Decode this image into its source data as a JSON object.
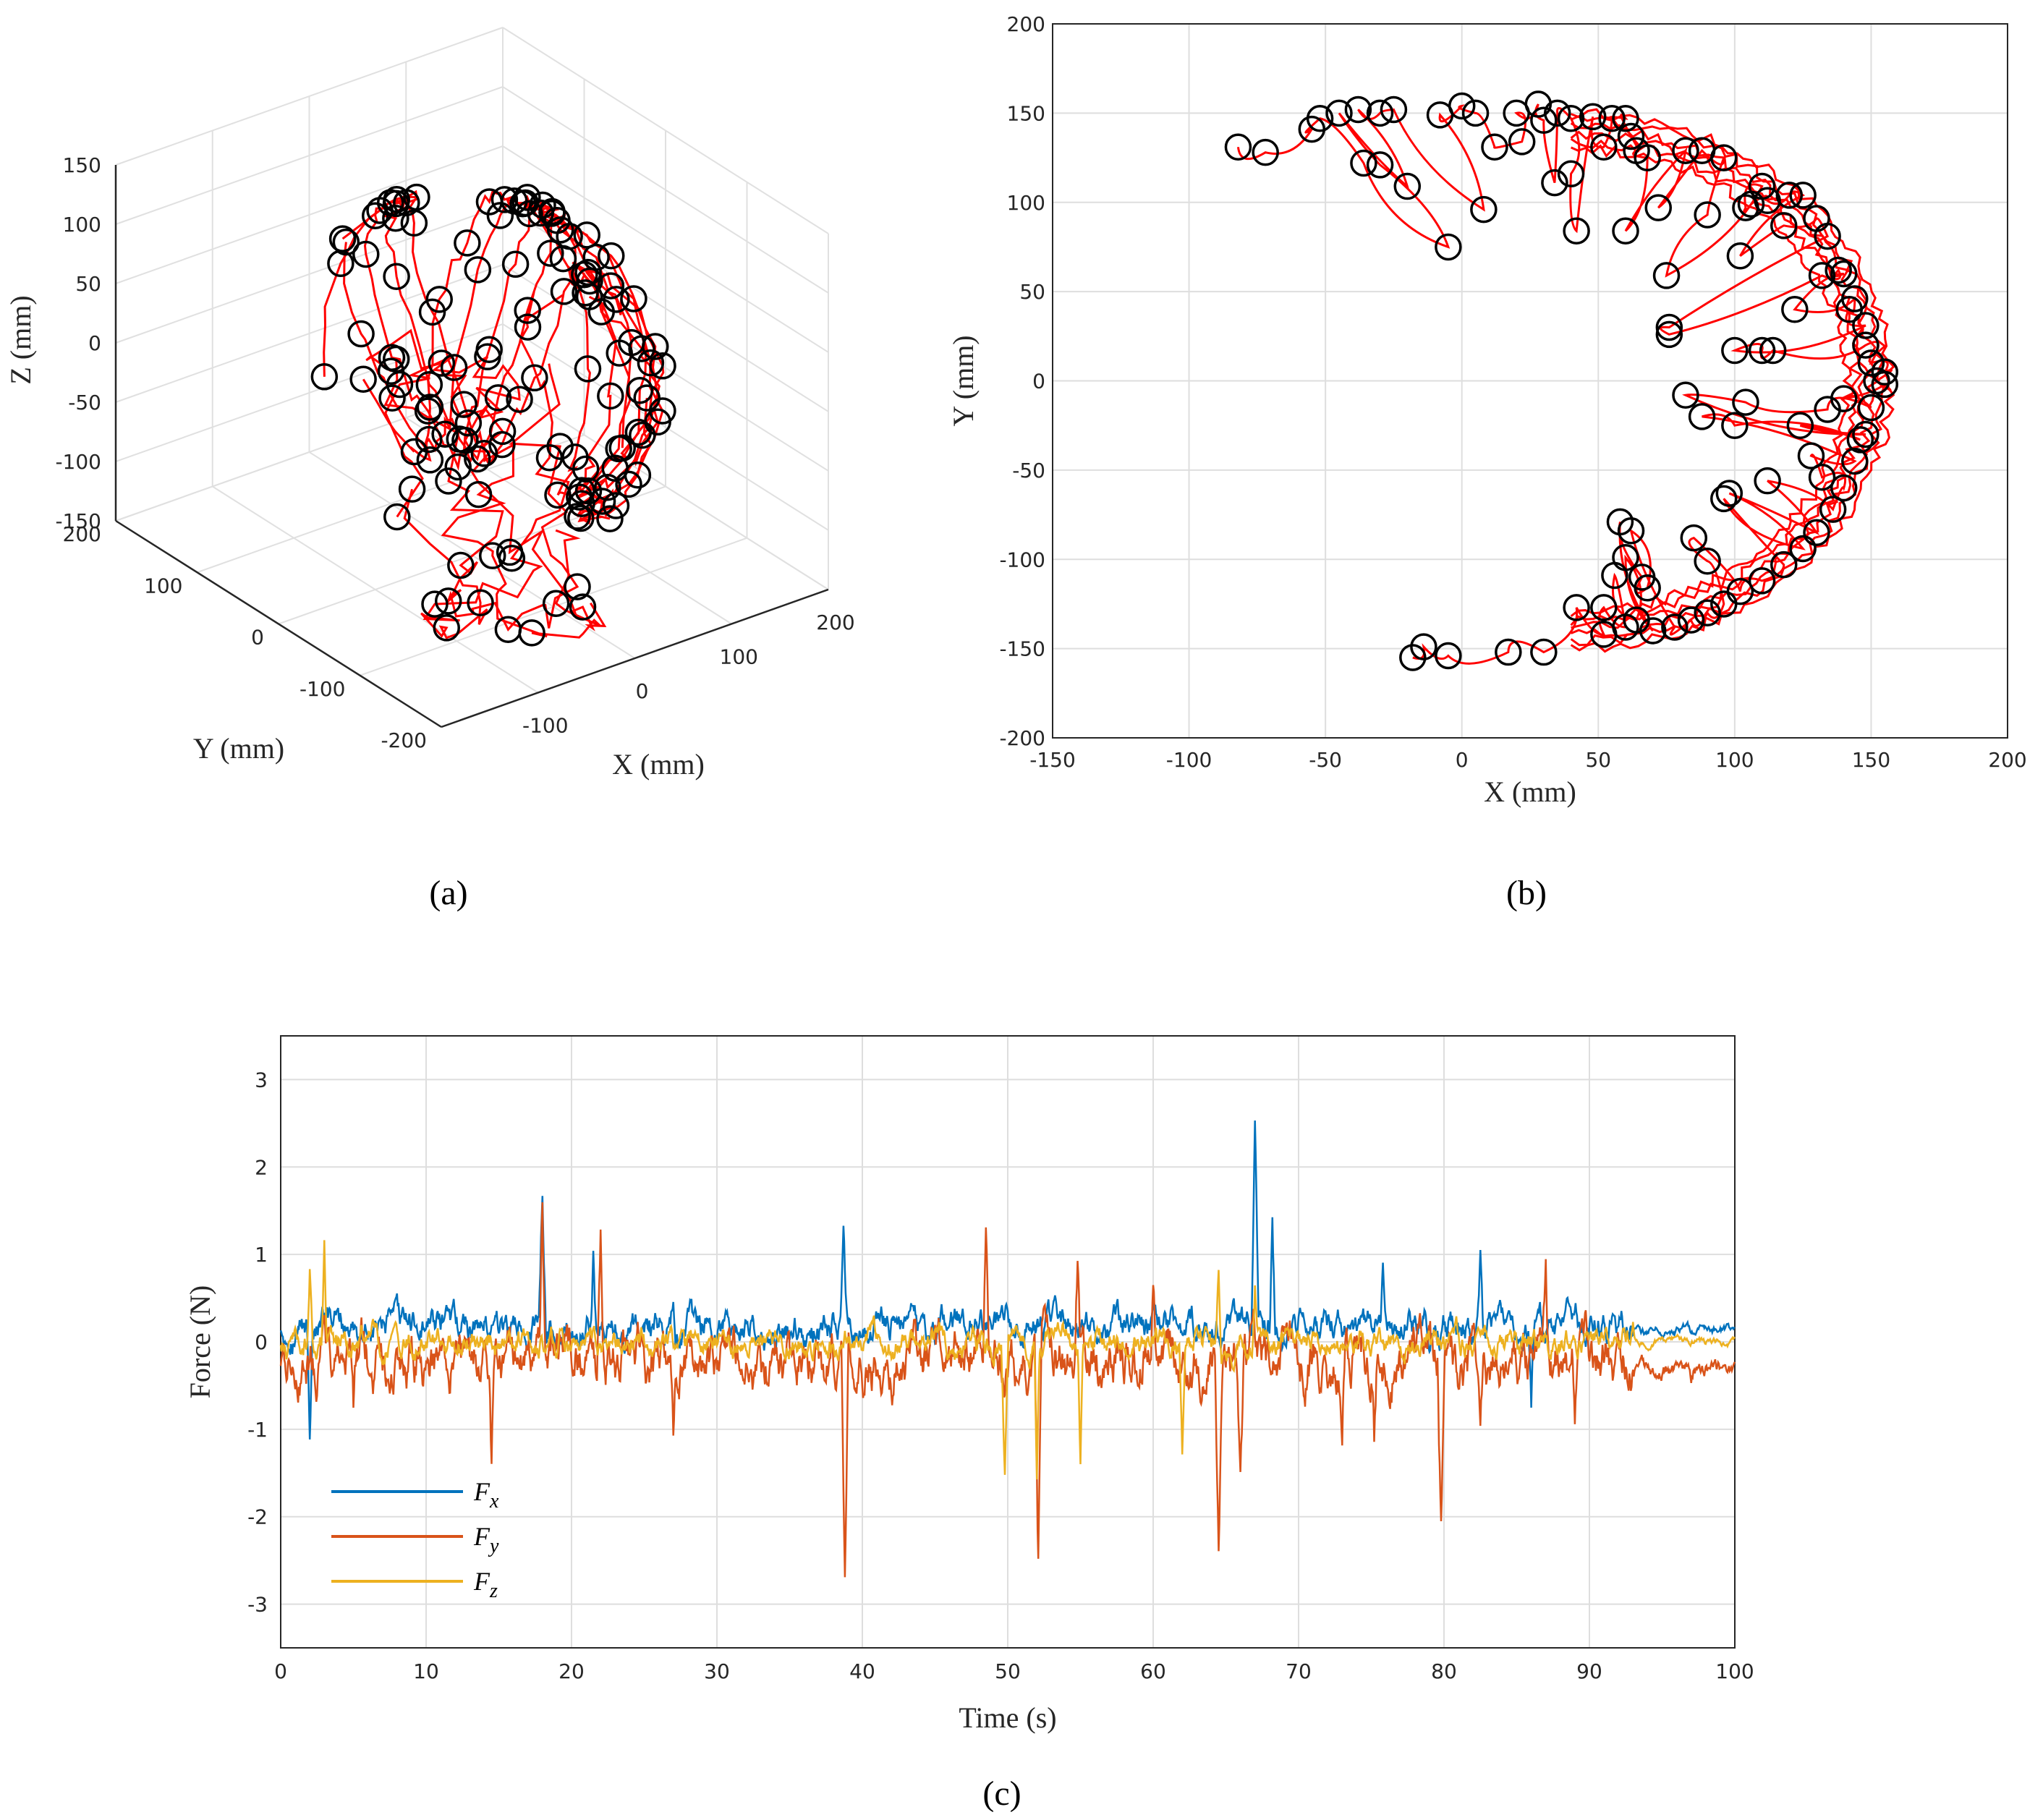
{
  "chart_data": [
    {
      "id": "a",
      "type": "line3d",
      "caption": "(a)",
      "xlabel": "X (mm)",
      "ylabel": "Y (mm)",
      "zlabel": "Z (mm)",
      "xlim": [
        -200,
        200
      ],
      "ylim": [
        -200,
        200
      ],
      "zlim": [
        -150,
        150
      ],
      "xticks": [
        "-100",
        "0",
        "100",
        "200"
      ],
      "yticks": [
        "200",
        "100",
        "0",
        "-100",
        "-200"
      ],
      "zticks": [
        "150",
        "100",
        "50",
        "0",
        "-50",
        "-100",
        "-150"
      ],
      "grid": true,
      "line_color": "#ff0000",
      "marker_color": "#000000",
      "series": [
        {
          "kind": "trajectory",
          "x": [
            150,
            140,
            120,
            100,
            80,
            60,
            40,
            20,
            0,
            -20,
            -40,
            -60,
            -80,
            -85,
            -80,
            -60,
            -40,
            -20,
            0,
            20,
            40,
            60,
            80,
            100,
            120,
            140,
            150,
            150,
            140,
            120,
            100,
            80,
            60,
            40,
            20,
            0,
            -20,
            -40,
            -60,
            -80,
            -85,
            -80,
            -60,
            -40,
            -20,
            0,
            20,
            40,
            60,
            80,
            100,
            120,
            140,
            150
          ],
          "y": [
            0,
            40,
            80,
            110,
            130,
            145,
            150,
            150,
            148,
            145,
            140,
            135,
            130,
            128,
            110,
            90,
            70,
            50,
            30,
            10,
            -10,
            -30,
            -60,
            -90,
            -120,
            -140,
            -100,
            -50,
            -80,
            -110,
            -130,
            -145,
            -150,
            -152,
            -150,
            -145,
            -130,
            -110,
            -80,
            -40,
            0,
            40,
            80,
            110,
            130,
            145,
            150,
            148,
            140,
            120,
            90,
            50,
            20,
            0
          ],
          "z": [
            0,
            30,
            60,
            80,
            95,
            100,
            100,
            98,
            95,
            90,
            80,
            70,
            50,
            20,
            -10,
            -40,
            -70,
            -90,
            -100,
            -95,
            -80,
            -60,
            -40,
            -20,
            0,
            20,
            40,
            60,
            70,
            60,
            40,
            20,
            0,
            -20,
            -40,
            -60,
            -80,
            -100,
            -120,
            -140,
            -120,
            -90,
            -60,
            -30,
            0,
            30,
            60,
            80,
            90,
            80,
            60,
            40,
            20,
            0
          ]
        }
      ]
    },
    {
      "id": "b",
      "type": "line",
      "caption": "(b)",
      "xlabel": "X (mm)",
      "ylabel": "Y (mm)",
      "xlim": [
        -150,
        200
      ],
      "ylim": [
        -200,
        200
      ],
      "xticks": [
        -150,
        -100,
        -50,
        0,
        50,
        100,
        150,
        200
      ],
      "yticks": [
        -200,
        -150,
        -100,
        -50,
        0,
        50,
        100,
        150,
        200
      ],
      "grid": true,
      "line_color": "#ff0000",
      "marker_color": "#000000",
      "markers": [
        [
          -82,
          131
        ],
        [
          -72,
          128
        ],
        [
          -55,
          141
        ],
        [
          -52,
          147
        ],
        [
          -45,
          150
        ],
        [
          -38,
          152
        ],
        [
          -30,
          150
        ],
        [
          -25,
          152
        ],
        [
          -36,
          122
        ],
        [
          -30,
          121
        ],
        [
          -20,
          109
        ],
        [
          -8,
          149
        ],
        [
          0,
          154
        ],
        [
          5,
          150
        ],
        [
          -5,
          75
        ],
        [
          8,
          96
        ],
        [
          12,
          131
        ],
        [
          20,
          150
        ],
        [
          22,
          134
        ],
        [
          28,
          155
        ],
        [
          30,
          146
        ],
        [
          35,
          150
        ],
        [
          40,
          147
        ],
        [
          42,
          84
        ],
        [
          34,
          111
        ],
        [
          40,
          116
        ],
        [
          48,
          148
        ],
        [
          52,
          131
        ],
        [
          55,
          147
        ],
        [
          60,
          147
        ],
        [
          62,
          137
        ],
        [
          64,
          129
        ],
        [
          60,
          84
        ],
        [
          68,
          125
        ],
        [
          72,
          97
        ],
        [
          75,
          59
        ],
        [
          76,
          30
        ],
        [
          76,
          26
        ],
        [
          82,
          129
        ],
        [
          88,
          129
        ],
        [
          90,
          93
        ],
        [
          96,
          125
        ],
        [
          102,
          70
        ],
        [
          104,
          97
        ],
        [
          106,
          99
        ],
        [
          110,
          109
        ],
        [
          112,
          101
        ],
        [
          118,
          87
        ],
        [
          120,
          104
        ],
        [
          125,
          104
        ],
        [
          130,
          91
        ],
        [
          134,
          81
        ],
        [
          140,
          60
        ],
        [
          142,
          40
        ],
        [
          148,
          20
        ],
        [
          150,
          10
        ],
        [
          152,
          0
        ],
        [
          155,
          -2
        ],
        [
          155,
          5
        ],
        [
          150,
          -15
        ],
        [
          148,
          -30
        ],
        [
          144,
          -45
        ],
        [
          140,
          -60
        ],
        [
          136,
          -72
        ],
        [
          130,
          -85
        ],
        [
          125,
          -94
        ],
        [
          118,
          -103
        ],
        [
          110,
          -112
        ],
        [
          102,
          -118
        ],
        [
          96,
          -125
        ],
        [
          90,
          -130
        ],
        [
          84,
          -134
        ],
        [
          78,
          -138
        ],
        [
          70,
          -140
        ],
        [
          64,
          -134
        ],
        [
          60,
          -138
        ],
        [
          52,
          -142
        ],
        [
          42,
          -127
        ],
        [
          30,
          -152
        ],
        [
          17,
          -152
        ],
        [
          -5,
          -154
        ],
        [
          -14,
          -149
        ],
        [
          -18,
          -155
        ],
        [
          52,
          -127
        ],
        [
          56,
          -109
        ],
        [
          60,
          -99
        ],
        [
          62,
          -84
        ],
        [
          58,
          -79
        ],
        [
          66,
          -110
        ],
        [
          68,
          -116
        ],
        [
          85,
          -88
        ],
        [
          90,
          -101
        ],
        [
          96,
          -66
        ],
        [
          98,
          -63
        ],
        [
          100,
          -25
        ],
        [
          112,
          -56
        ],
        [
          124,
          -25
        ],
        [
          128,
          -42
        ],
        [
          132,
          -54
        ],
        [
          134,
          -16
        ],
        [
          140,
          -10
        ],
        [
          146,
          -33
        ],
        [
          110,
          17
        ],
        [
          104,
          -12
        ],
        [
          88,
          -20
        ],
        [
          82,
          -8
        ],
        [
          100,
          17
        ],
        [
          114,
          17
        ],
        [
          122,
          40
        ],
        [
          132,
          59
        ],
        [
          138,
          62
        ],
        [
          144,
          46
        ],
        [
          148,
          31
        ]
      ]
    },
    {
      "id": "c",
      "type": "line",
      "caption": "(c)",
      "xlabel": "Time (s)",
      "ylabel": "Force (N)",
      "xlim": [
        0,
        100
      ],
      "ylim": [
        -3.5,
        3.5
      ],
      "xticks": [
        0,
        10,
        20,
        30,
        40,
        50,
        60,
        70,
        80,
        90,
        100
      ],
      "yticks": [
        -3,
        -2,
        -1,
        0,
        1,
        2,
        3
      ],
      "grid": true,
      "legend_position": "bottom-left",
      "series": [
        {
          "name": "F",
          "subscript": "x",
          "color": "#0072BD",
          "baseline": 0.18,
          "noise": 0.18,
          "spikes": [
            [
              2,
              -1.1
            ],
            [
              18,
              1.8
            ],
            [
              21.5,
              1.0
            ],
            [
              27,
              0.6
            ],
            [
              38.7,
              0.95
            ],
            [
              67,
              2.65
            ],
            [
              68.2,
              1.4
            ],
            [
              75.8,
              0.95
            ],
            [
              82.5,
              0.9
            ],
            [
              86,
              -0.8
            ]
          ]
        },
        {
          "name": "F",
          "subscript": "y",
          "color": "#D95319",
          "baseline": -0.2,
          "noise": 0.3,
          "spikes": [
            [
              5,
              -0.8
            ],
            [
              14.5,
              -1.25
            ],
            [
              18,
              1.4
            ],
            [
              22,
              1.55
            ],
            [
              27,
              -1.0
            ],
            [
              38.8,
              -2.7
            ],
            [
              48.5,
              1.2
            ],
            [
              52.1,
              -2.7
            ],
            [
              54.8,
              0.9
            ],
            [
              60,
              0.6
            ],
            [
              64.5,
              -2.25
            ],
            [
              66,
              -1.55
            ],
            [
              73,
              -1.3
            ],
            [
              75.2,
              -1.05
            ],
            [
              79.8,
              -2.25
            ],
            [
              82.5,
              -1.1
            ],
            [
              87,
              0.8
            ],
            [
              89,
              -1.3
            ],
            [
              97,
              -0.3
            ]
          ]
        },
        {
          "name": "F",
          "subscript": "z",
          "color": "#EDB120",
          "baseline": 0.0,
          "noise": 0.15,
          "spikes": [
            [
              2,
              0.95
            ],
            [
              3,
              1.12
            ],
            [
              49.8,
              -1.55
            ],
            [
              52,
              -1.5
            ],
            [
              55,
              -1.45
            ],
            [
              62,
              -1.15
            ],
            [
              64.5,
              0.9
            ],
            [
              67,
              0.75
            ],
            [
              93,
              0.2
            ]
          ]
        }
      ]
    }
  ]
}
